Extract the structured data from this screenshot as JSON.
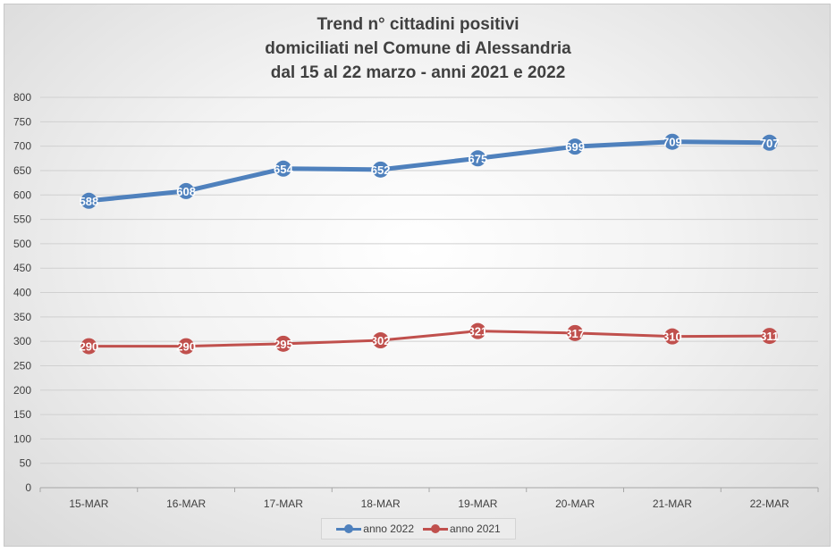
{
  "chart_data": {
    "type": "line",
    "title": [
      "Trend n° cittadini positivi",
      "domiciliati nel Comune di Alessandria",
      "dal 15 al 22 marzo - anni 2021 e 2022"
    ],
    "categories": [
      "15-MAR",
      "16-MAR",
      "17-MAR",
      "18-MAR",
      "19-MAR",
      "20-MAR",
      "21-MAR",
      "22-MAR"
    ],
    "series": [
      {
        "name": "anno 2022",
        "color": "#4f81bd",
        "values": [
          588,
          608,
          654,
          652,
          675,
          699,
          709,
          707
        ]
      },
      {
        "name": "anno 2021",
        "color": "#c0504d",
        "values": [
          290,
          290,
          295,
          302,
          321,
          317,
          310,
          311
        ]
      }
    ],
    "ylim": [
      0,
      800
    ],
    "ytick_step": 50,
    "grid": true,
    "legend": "bottom",
    "data_labels": true
  }
}
